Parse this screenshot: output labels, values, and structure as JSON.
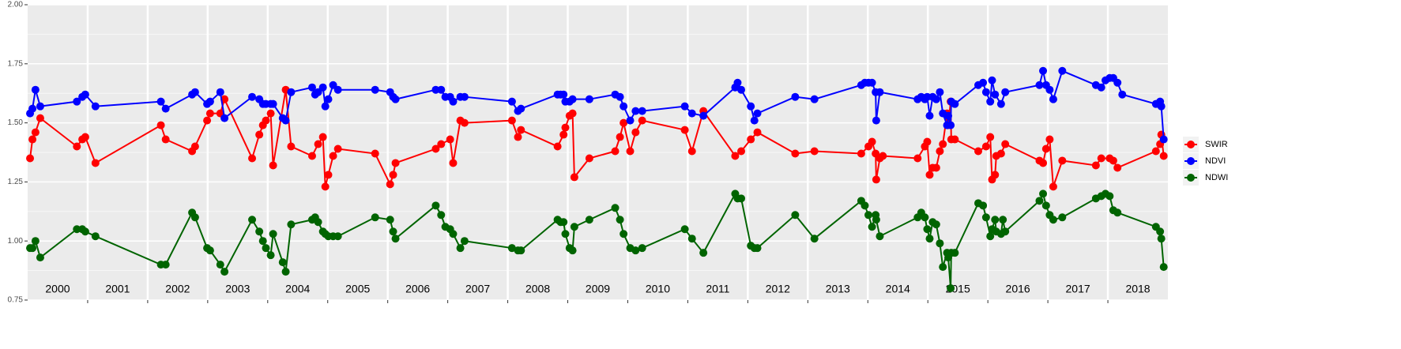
{
  "chart_data": {
    "type": "line",
    "xlim": [
      2000,
      2019
    ],
    "year_boundaries": [
      2001,
      2002,
      2003,
      2004,
      2005,
      2006,
      2007,
      2008,
      2009,
      2010,
      2011,
      2012,
      2013,
      2014,
      2015,
      2016,
      2017,
      2018
    ],
    "xticks": [
      {
        "value": 2000.5,
        "label": "2000"
      },
      {
        "value": 2001.5,
        "label": "2001"
      },
      {
        "value": 2002.5,
        "label": "2002"
      },
      {
        "value": 2003.5,
        "label": "2003"
      },
      {
        "value": 2004.5,
        "label": "2004"
      },
      {
        "value": 2005.5,
        "label": "2005"
      },
      {
        "value": 2006.5,
        "label": "2006"
      },
      {
        "value": 2007.5,
        "label": "2007"
      },
      {
        "value": 2008.5,
        "label": "2008"
      },
      {
        "value": 2009.5,
        "label": "2009"
      },
      {
        "value": 2010.5,
        "label": "2010"
      },
      {
        "value": 2011.5,
        "label": "2011"
      },
      {
        "value": 2012.5,
        "label": "2012"
      },
      {
        "value": 2013.5,
        "label": "2013"
      },
      {
        "value": 2014.5,
        "label": "2014"
      },
      {
        "value": 2015.5,
        "label": "2015"
      },
      {
        "value": 2016.5,
        "label": "2016"
      },
      {
        "value": 2017.5,
        "label": "2017"
      },
      {
        "value": 2018.5,
        "label": "2018"
      }
    ],
    "ylim": [
      0.75,
      2.0
    ],
    "yticks": [
      {
        "value": 0.75,
        "label": "0.75"
      },
      {
        "value": 1.0,
        "label": "1.00"
      },
      {
        "value": 1.25,
        "label": "1.25"
      },
      {
        "value": 1.5,
        "label": "1.50"
      },
      {
        "value": 1.75,
        "label": "1.75"
      },
      {
        "value": 2.0,
        "label": "2.00"
      }
    ],
    "grid": true,
    "legend": "right",
    "series": [
      {
        "name": "SWIR",
        "color": "#ff0000",
        "x": [
          2000.04,
          2000.08,
          2000.13,
          2000.21,
          2000.82,
          2000.91,
          2000.96,
          2001.13,
          2002.22,
          2002.3,
          2002.74,
          2002.79,
          2002.99,
          2003.04,
          2003.21,
          2003.28,
          2003.74,
          2003.86,
          2003.92,
          2003.97,
          2004.05,
          2004.09,
          2004.3,
          2004.39,
          2004.74,
          2004.84,
          2004.92,
          2004.96,
          2005.01,
          2005.09,
          2005.17,
          2005.79,
          2006.04,
          2006.09,
          2006.13,
          2006.8,
          2006.89,
          2007.04,
          2007.09,
          2007.21,
          2007.28,
          2008.07,
          2008.17,
          2008.22,
          2008.83,
          2008.93,
          2008.96,
          2009.03,
          2009.08,
          2009.11,
          2009.36,
          2009.79,
          2009.87,
          2009.93,
          2010.04,
          2010.13,
          2010.24,
          2010.95,
          2011.07,
          2011.26,
          2011.79,
          2011.89,
          2012.05,
          2012.16,
          2012.79,
          2013.11,
          2013.89,
          2014.01,
          2014.07,
          2014.13,
          2014.14,
          2014.2,
          2014.25,
          2014.83,
          2014.95,
          2014.99,
          2015.03,
          2015.08,
          2015.14,
          2015.2,
          2015.25,
          2015.32,
          2015.34,
          2015.38,
          2015.39,
          2015.45,
          2015.84,
          2015.97,
          2016.04,
          2016.07,
          2016.12,
          2016.14,
          2016.22,
          2016.29,
          2016.86,
          2016.92,
          2016.97,
          2017.03,
          2017.09,
          2017.24,
          2017.8,
          2017.89,
          2018.03,
          2018.09,
          2018.16,
          2018.8,
          2018.87,
          2018.89,
          2018.93
        ],
        "values": [
          1.35,
          1.43,
          1.46,
          1.52,
          1.4,
          1.43,
          1.44,
          1.33,
          1.49,
          1.43,
          1.38,
          1.4,
          1.51,
          1.54,
          1.54,
          1.6,
          1.35,
          1.45,
          1.49,
          1.51,
          1.54,
          1.32,
          1.64,
          1.4,
          1.36,
          1.41,
          1.44,
          1.23,
          1.28,
          1.36,
          1.39,
          1.37,
          1.24,
          1.28,
          1.33,
          1.39,
          1.41,
          1.43,
          1.33,
          1.51,
          1.5,
          1.51,
          1.44,
          1.47,
          1.4,
          1.45,
          1.48,
          1.53,
          1.54,
          1.27,
          1.35,
          1.38,
          1.44,
          1.5,
          1.38,
          1.46,
          1.51,
          1.47,
          1.38,
          1.55,
          1.36,
          1.38,
          1.43,
          1.46,
          1.37,
          1.38,
          1.37,
          1.4,
          1.42,
          1.37,
          1.26,
          1.35,
          1.36,
          1.35,
          1.4,
          1.42,
          1.28,
          1.31,
          1.31,
          1.38,
          1.41,
          1.54,
          1.49,
          1.59,
          1.43,
          1.43,
          1.38,
          1.4,
          1.44,
          1.26,
          1.28,
          1.36,
          1.37,
          1.41,
          1.34,
          1.33,
          1.39,
          1.43,
          1.23,
          1.34,
          1.32,
          1.35,
          1.35,
          1.34,
          1.31,
          1.38,
          1.41,
          1.45,
          1.36
        ]
      },
      {
        "name": "NDVI",
        "color": "#0000ff",
        "x": [
          2000.04,
          2000.08,
          2000.13,
          2000.21,
          2000.82,
          2000.91,
          2000.96,
          2001.13,
          2002.22,
          2002.3,
          2002.74,
          2002.79,
          2002.99,
          2003.04,
          2003.21,
          2003.28,
          2003.74,
          2003.86,
          2003.92,
          2003.97,
          2004.05,
          2004.09,
          2004.25,
          2004.3,
          2004.39,
          2004.74,
          2004.79,
          2004.84,
          2004.92,
          2004.96,
          2005.01,
          2005.09,
          2005.17,
          2005.79,
          2006.04,
          2006.09,
          2006.13,
          2006.8,
          2006.89,
          2006.96,
          2007.04,
          2007.09,
          2007.21,
          2007.28,
          2008.07,
          2008.17,
          2008.22,
          2008.83,
          2008.88,
          2008.93,
          2008.96,
          2009.03,
          2009.08,
          2009.36,
          2009.79,
          2009.87,
          2009.93,
          2010.04,
          2010.13,
          2010.24,
          2010.95,
          2011.07,
          2011.26,
          2011.79,
          2011.83,
          2011.89,
          2012.05,
          2012.11,
          2012.16,
          2012.79,
          2013.11,
          2013.89,
          2013.95,
          2014.01,
          2014.07,
          2014.13,
          2014.14,
          2014.2,
          2014.83,
          2014.89,
          2014.95,
          2014.99,
          2015.03,
          2015.08,
          2015.14,
          2015.2,
          2015.25,
          2015.32,
          2015.34,
          2015.38,
          2015.39,
          2015.45,
          2015.84,
          2015.92,
          2015.97,
          2016.04,
          2016.07,
          2016.12,
          2016.22,
          2016.29,
          2016.86,
          2016.92,
          2016.97,
          2017.03,
          2017.09,
          2017.24,
          2017.8,
          2017.89,
          2017.96,
          2018.03,
          2018.09,
          2018.16,
          2018.24,
          2018.8,
          2018.87,
          2018.89,
          2018.93
        ],
        "values": [
          1.54,
          1.56,
          1.64,
          1.57,
          1.59,
          1.61,
          1.62,
          1.57,
          1.59,
          1.56,
          1.62,
          1.63,
          1.58,
          1.59,
          1.63,
          1.52,
          1.61,
          1.6,
          1.58,
          1.58,
          1.58,
          1.58,
          1.52,
          1.51,
          1.63,
          1.65,
          1.62,
          1.63,
          1.65,
          1.57,
          1.6,
          1.66,
          1.64,
          1.64,
          1.63,
          1.61,
          1.6,
          1.64,
          1.64,
          1.61,
          1.61,
          1.59,
          1.61,
          1.61,
          1.59,
          1.55,
          1.56,
          1.62,
          1.62,
          1.62,
          1.59,
          1.59,
          1.6,
          1.6,
          1.62,
          1.61,
          1.57,
          1.51,
          1.55,
          1.55,
          1.57,
          1.54,
          1.53,
          1.65,
          1.67,
          1.64,
          1.57,
          1.51,
          1.54,
          1.61,
          1.6,
          1.66,
          1.67,
          1.67,
          1.67,
          1.63,
          1.51,
          1.63,
          1.6,
          1.61,
          1.6,
          1.61,
          1.53,
          1.61,
          1.6,
          1.63,
          1.54,
          1.49,
          1.53,
          1.49,
          1.59,
          1.58,
          1.66,
          1.67,
          1.63,
          1.59,
          1.68,
          1.62,
          1.58,
          1.63,
          1.66,
          1.72,
          1.66,
          1.64,
          1.6,
          1.72,
          1.66,
          1.65,
          1.68,
          1.69,
          1.69,
          1.67,
          1.62,
          1.58,
          1.59,
          1.57,
          1.43
        ]
      },
      {
        "name": "NDWI",
        "color": "#006400",
        "x": [
          2000.04,
          2000.08,
          2000.13,
          2000.21,
          2000.82,
          2000.91,
          2000.96,
          2001.13,
          2002.22,
          2002.3,
          2002.74,
          2002.79,
          2002.99,
          2003.04,
          2003.21,
          2003.28,
          2003.74,
          2003.86,
          2003.92,
          2003.97,
          2004.05,
          2004.09,
          2004.25,
          2004.3,
          2004.39,
          2004.74,
          2004.79,
          2004.84,
          2004.92,
          2004.96,
          2005.01,
          2005.09,
          2005.17,
          2005.79,
          2006.04,
          2006.09,
          2006.13,
          2006.8,
          2006.89,
          2006.96,
          2007.04,
          2007.09,
          2007.21,
          2007.28,
          2008.07,
          2008.17,
          2008.22,
          2008.83,
          2008.88,
          2008.93,
          2008.96,
          2009.03,
          2009.08,
          2009.11,
          2009.36,
          2009.79,
          2009.87,
          2009.93,
          2010.04,
          2010.13,
          2010.24,
          2010.95,
          2011.07,
          2011.26,
          2011.79,
          2011.83,
          2011.89,
          2012.05,
          2012.11,
          2012.16,
          2012.79,
          2013.11,
          2013.89,
          2013.95,
          2014.01,
          2014.07,
          2014.13,
          2014.14,
          2014.2,
          2014.83,
          2014.89,
          2014.95,
          2014.99,
          2015.03,
          2015.08,
          2015.14,
          2015.2,
          2015.25,
          2015.32,
          2015.34,
          2015.38,
          2015.39,
          2015.45,
          2015.84,
          2015.92,
          2015.97,
          2016.04,
          2016.07,
          2016.12,
          2016.14,
          2016.22,
          2016.25,
          2016.29,
          2016.86,
          2016.92,
          2016.97,
          2017.03,
          2017.09,
          2017.24,
          2017.8,
          2017.89,
          2017.96,
          2018.03,
          2018.09,
          2018.16,
          2018.8,
          2018.87,
          2018.89,
          2018.93
        ],
        "values": [
          0.97,
          0.97,
          1.0,
          0.93,
          1.05,
          1.05,
          1.04,
          1.02,
          0.9,
          0.9,
          1.12,
          1.1,
          0.97,
          0.96,
          0.9,
          0.87,
          1.09,
          1.04,
          1.0,
          0.97,
          0.94,
          1.03,
          0.91,
          0.87,
          1.07,
          1.09,
          1.1,
          1.08,
          1.04,
          1.03,
          1.02,
          1.02,
          1.02,
          1.1,
          1.09,
          1.04,
          1.01,
          1.15,
          1.11,
          1.06,
          1.05,
          1.03,
          0.97,
          1.0,
          0.97,
          0.96,
          0.96,
          1.09,
          1.08,
          1.08,
          1.03,
          0.97,
          0.96,
          1.06,
          1.09,
          1.14,
          1.09,
          1.03,
          0.97,
          0.96,
          0.97,
          1.05,
          1.01,
          0.95,
          1.2,
          1.18,
          1.18,
          0.98,
          0.97,
          0.97,
          1.11,
          1.01,
          1.17,
          1.15,
          1.11,
          1.06,
          1.11,
          1.09,
          1.02,
          1.1,
          1.12,
          1.1,
          1.05,
          1.01,
          1.08,
          1.07,
          0.99,
          0.89,
          0.95,
          0.93,
          0.8,
          0.95,
          0.95,
          1.16,
          1.15,
          1.1,
          1.02,
          1.05,
          1.09,
          1.04,
          1.03,
          1.09,
          1.04,
          1.17,
          1.2,
          1.15,
          1.11,
          1.09,
          1.1,
          1.18,
          1.19,
          1.2,
          1.19,
          1.13,
          1.12,
          1.06,
          1.04,
          1.01,
          0.89
        ]
      }
    ]
  }
}
